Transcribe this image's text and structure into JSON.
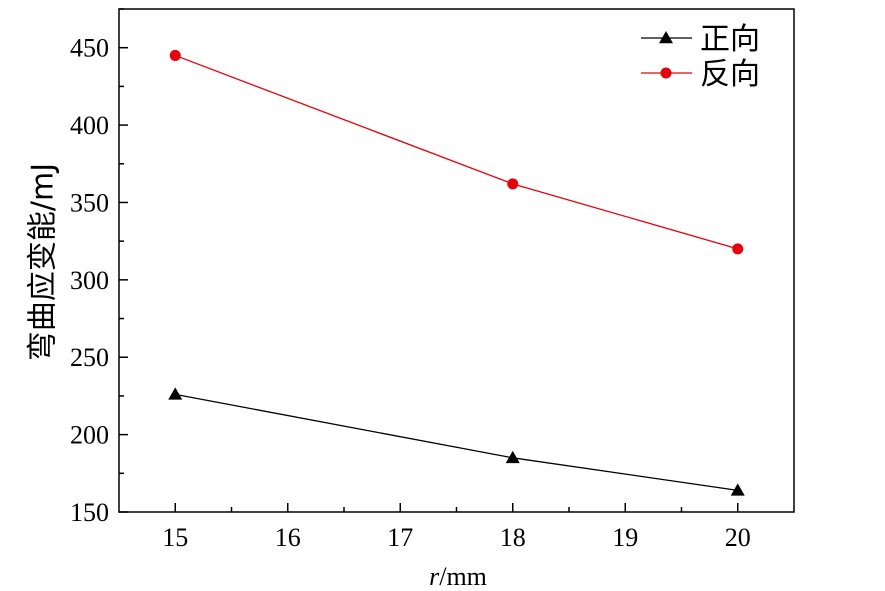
{
  "chart_data": {
    "type": "line",
    "title": "",
    "xlabel_italic": "r",
    "xlabel_unit": "/mm",
    "ylabel": "弯曲应变能/mJ",
    "xlim": [
      14.5,
      20.5
    ],
    "ylim": [
      150,
      475
    ],
    "xticks": [
      15,
      16,
      17,
      18,
      19,
      20
    ],
    "yticks": [
      150,
      200,
      250,
      300,
      350,
      400,
      450
    ],
    "grid": false,
    "legend_position": "top-right",
    "series": [
      {
        "name": "正向",
        "color": "#000000",
        "marker": "triangle",
        "x": [
          15,
          18,
          20
        ],
        "y": [
          226,
          185,
          164
        ]
      },
      {
        "name": "反向",
        "color": "#e8000b",
        "marker": "circle",
        "x": [
          15,
          18,
          20
        ],
        "y": [
          445,
          362,
          320
        ]
      }
    ]
  }
}
